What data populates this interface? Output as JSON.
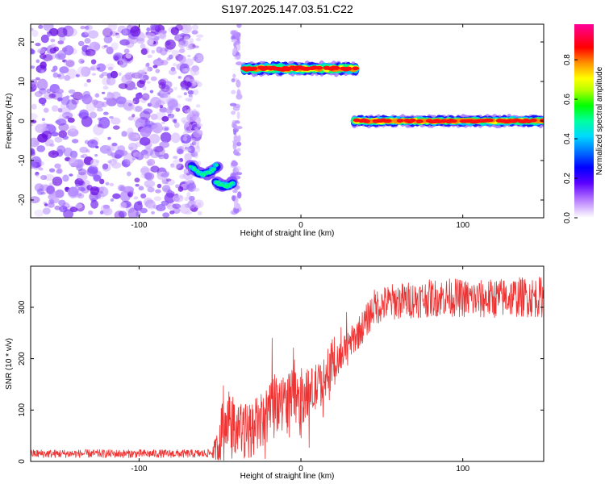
{
  "title": "S197.2025.147.03.51.C22",
  "chart_data": [
    {
      "type": "heatmap",
      "xlabel": "Height of straight line (km)",
      "ylabel": "Frequency (Hz)",
      "xlim": [
        -167,
        150
      ],
      "ylim": [
        -24.5,
        24.5
      ],
      "xticks": [
        -100,
        0,
        100
      ],
      "yticks": [
        -20,
        -10,
        0,
        10,
        20
      ],
      "colorbar": {
        "label": "Normalized spectral amplitude",
        "range": [
          0,
          0.98
        ],
        "ticks": [
          0.0,
          0.2,
          0.4,
          0.6,
          0.8
        ],
        "colors": [
          "#ffffff",
          "#c88cff",
          "#7a00ff",
          "#0000ff",
          "#00c8ff",
          "#00ff80",
          "#ffff00",
          "#ff8800",
          "#ff0000",
          "#ff00aa"
        ]
      },
      "features": [
        {
          "x": [
            -167,
            -63
          ],
          "y": [
            -24,
            24
          ],
          "amplitude": 0.1
        },
        {
          "x": [
            -68,
            -52
          ],
          "y": [
            -15,
            -10
          ],
          "amplitude": 0.35
        },
        {
          "x": [
            -52,
            -42
          ],
          "y": [
            -17,
            -15
          ],
          "amplitude": 0.35
        },
        {
          "x": [
            -42,
            -38
          ],
          "y": [
            -24,
            24
          ],
          "amplitude": 0.15
        },
        {
          "x": [
            -35,
            35
          ],
          "y": [
            12,
            14.5
          ],
          "amplitude": 0.85
        },
        {
          "x": [
            33,
            150
          ],
          "y": [
            -1,
            1
          ],
          "amplitude": 0.9
        }
      ]
    },
    {
      "type": "line",
      "xlabel": "Height of straight line (km)",
      "ylabel": "SNR (10 * v/v)",
      "xlim": [
        -167,
        150
      ],
      "ylim": [
        0,
        380
      ],
      "xticks": [
        -100,
        0,
        100
      ],
      "yticks": [
        0,
        100,
        200,
        300
      ],
      "color": "#ee3333",
      "trend": {
        "x": [
          -167,
          -60,
          -52,
          -48,
          -42,
          -35,
          -25,
          -15,
          -5,
          5,
          15,
          22,
          28,
          33,
          40,
          45,
          55,
          70,
          90,
          110,
          130,
          150
        ],
        "y": [
          15,
          15,
          18,
          60,
          75,
          55,
          75,
          110,
          125,
          130,
          160,
          190,
          220,
          240,
          270,
          300,
          310,
          315,
          320,
          315,
          320,
          320
        ]
      },
      "noise": {
        "x": [
          -167,
          -55,
          -50,
          -30,
          0,
          30,
          45,
          150
        ],
        "amplitude": [
          8,
          8,
          60,
          55,
          55,
          30,
          35,
          40
        ]
      }
    }
  ]
}
